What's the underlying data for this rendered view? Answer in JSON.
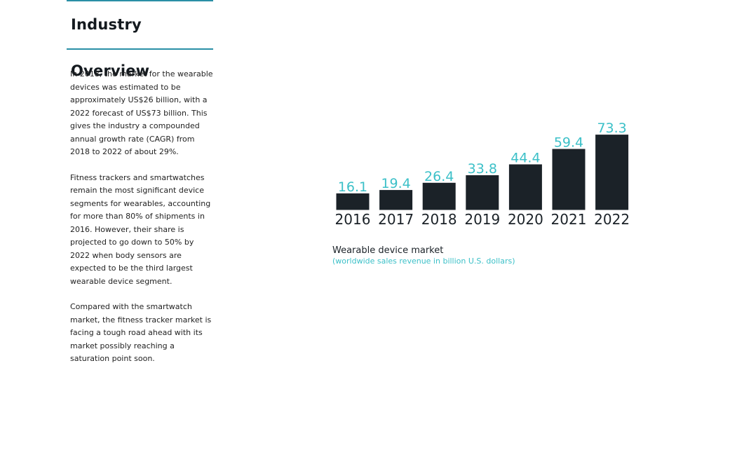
{
  "sidebar": {
    "title": "Industry Overview",
    "paragraphs": [
      "In 2018, the market for the wearable devices was estimated to be approximately US$26 billion, with a 2022 forecast of US$73 billion. This gives the industry a compounded annual growth rate (CAGR) from 2018 to 2022 of about 29%.",
      "Fitness trackers and smartwatches remain the most significant device segments for wearables, accounting for more than 80% of shipments in 2016. However, their share is projected to go down to 50% by 2022 when body sensors are expected to be the third largest wearable device segment.",
      "Compared with the smartwatch market, the fitness tracker market is facing a tough road ahead with its market possibly reaching a saturation point soon."
    ]
  },
  "chart_data": {
    "type": "bar",
    "title": "Wearable device market",
    "subtitle": "(worldwide sales revenue in billion U.S. dollars)",
    "categories": [
      "2016",
      "2017",
      "2018",
      "2019",
      "2020",
      "2021",
      "2022"
    ],
    "values": [
      16.1,
      19.4,
      26.4,
      33.8,
      44.4,
      59.4,
      73.3
    ],
    "value_labels": [
      "16.1",
      "19.4",
      "26.4",
      "33.8",
      "44.4",
      "59.4",
      "73.3"
    ],
    "xlabel": "",
    "ylabel": "",
    "grid": false,
    "legend": "none",
    "colors": {
      "bar": "#1b2228",
      "value_label": "#3cc0c8",
      "category_label": "#1b2228",
      "accent_rule": "#2a8fa6"
    }
  }
}
